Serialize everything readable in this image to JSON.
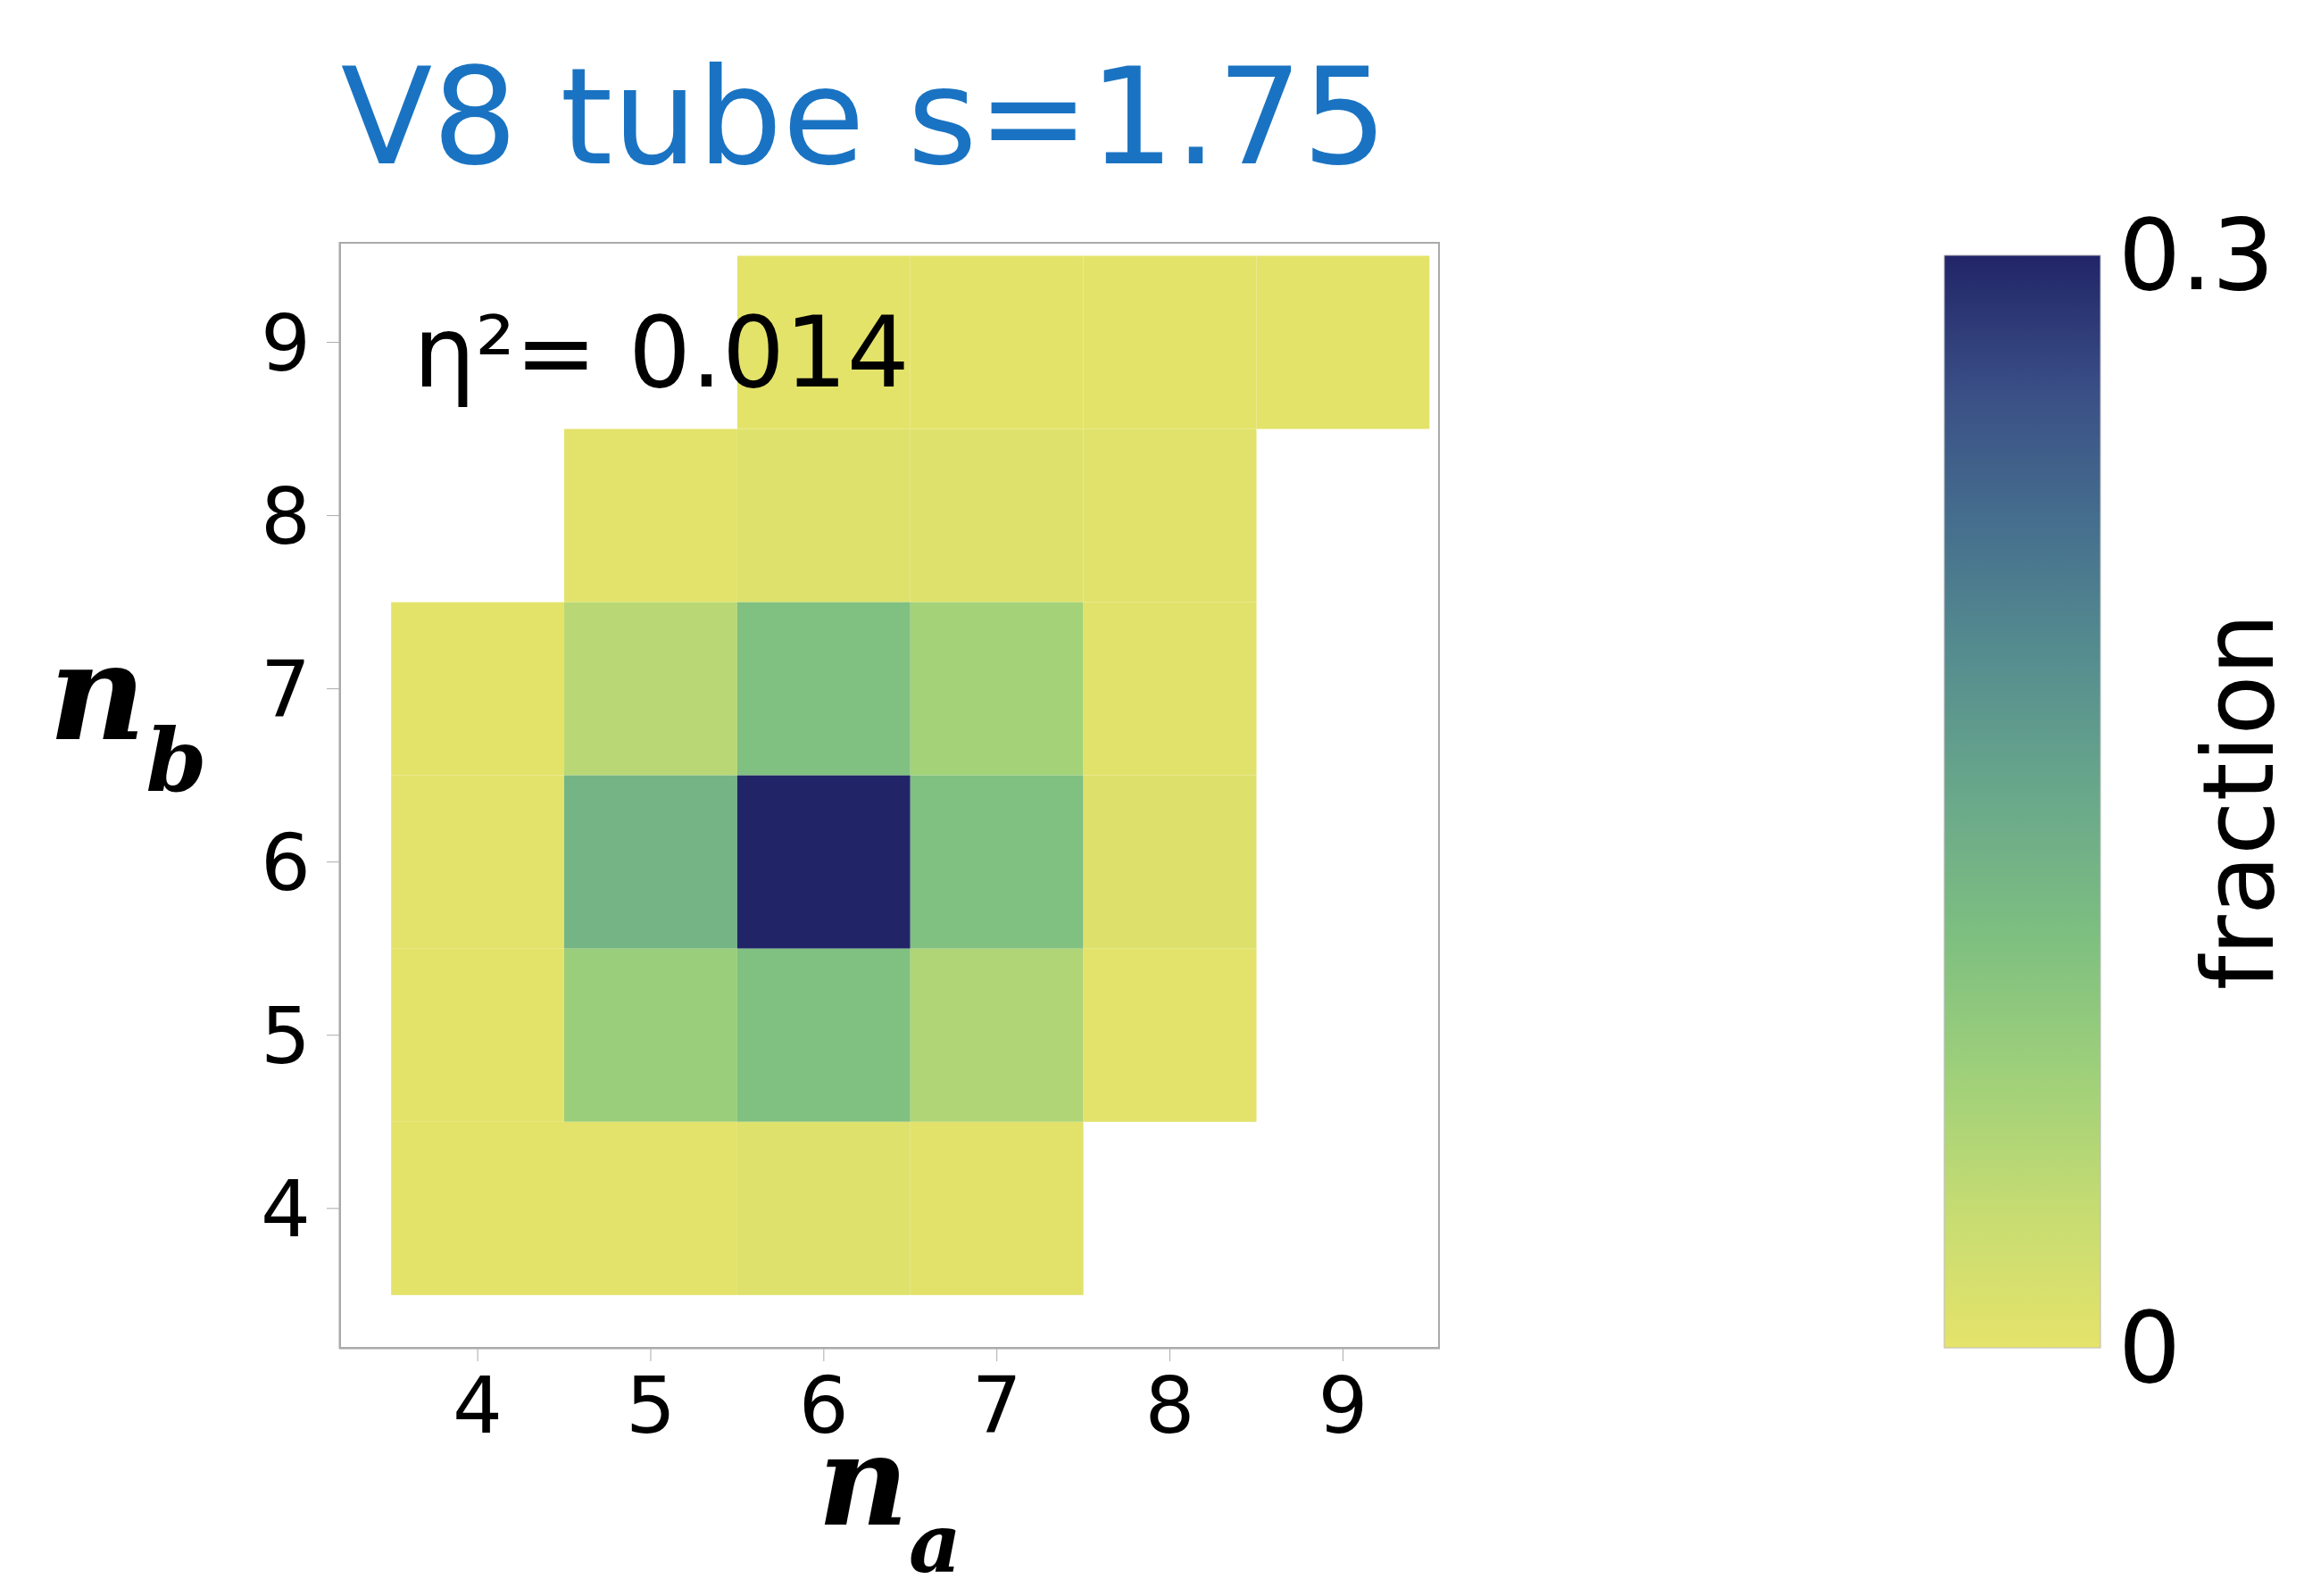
{
  "chart_data": {
    "type": "heatmap",
    "title": "V8 tube s=1.75",
    "xlabel": "n$_{a}$",
    "ylabel": "n$_{b}$",
    "clabel": "fraction",
    "categories": [
      "4",
      "5",
      "6",
      "7",
      "8",
      "9"
    ],
    "y_categories": [
      "9",
      "8",
      "7",
      "6",
      "5",
      "4"
    ],
    "cells": [
      [
        null,
        null,
        0.002,
        0.002,
        0.002,
        0.002
      ],
      [
        null,
        0.003,
        0.008,
        0.008,
        0.005,
        null
      ],
      [
        0.002,
        0.05,
        0.11,
        0.07,
        0.005,
        null
      ],
      [
        0.003,
        0.13,
        0.3,
        0.11,
        0.01,
        null
      ],
      [
        0.002,
        0.08,
        0.11,
        0.06,
        0.003,
        null
      ],
      [
        0.002,
        0.003,
        0.008,
        0.004,
        null,
        null
      ]
    ],
    "clim": [
      0,
      0.3
    ],
    "cticks": [
      0,
      0.3
    ],
    "annotations": [
      "η²= 0.014"
    ]
  }
}
